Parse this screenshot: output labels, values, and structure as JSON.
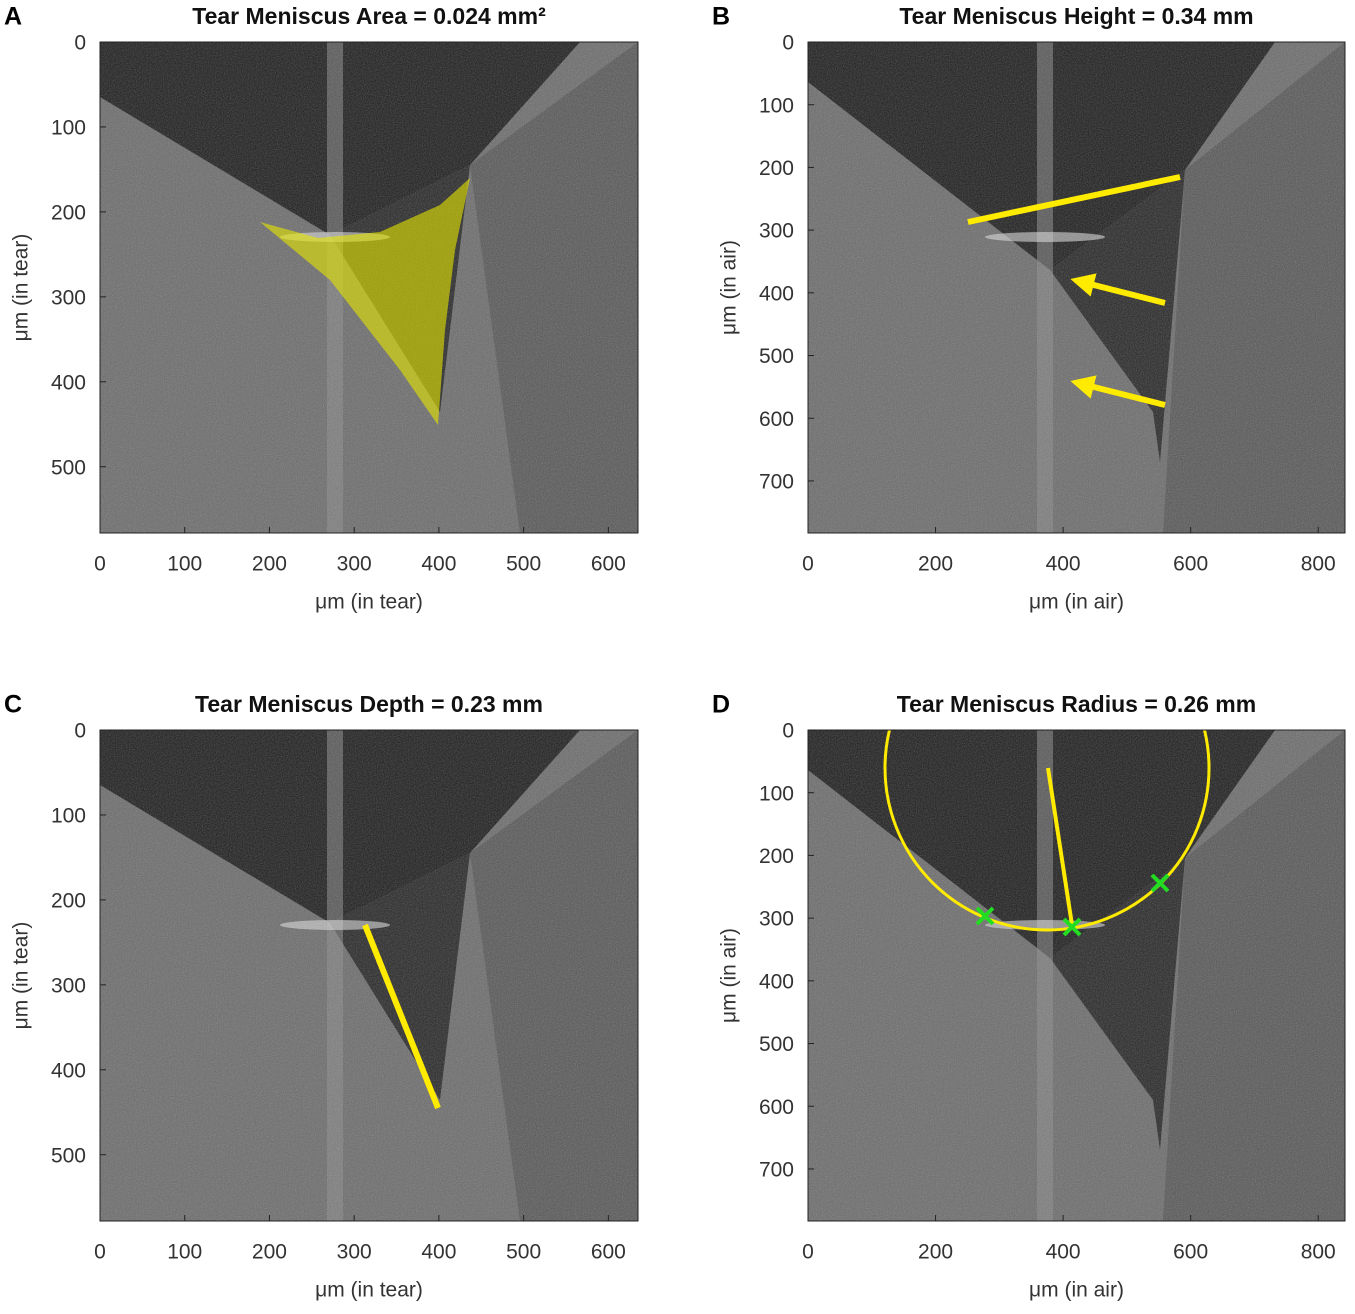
{
  "chart_data": [
    {
      "type": "image",
      "panel": "A",
      "title": "Tear Meniscus Area = 0.024 mm²",
      "xlabel": "μm (in tear)",
      "ylabel": "μm (in tear)",
      "xlim": [
        0,
        635
      ],
      "ylim": [
        0,
        578
      ],
      "xticks": [
        0,
        100,
        200,
        300,
        400,
        500,
        600
      ],
      "yticks": [
        0,
        100,
        200,
        300,
        400,
        500
      ],
      "y_reversed": true
    },
    {
      "type": "image",
      "panel": "B",
      "title": "Tear Meniscus Height = 0.34 mm",
      "xlabel": "μm (in air)",
      "ylabel": "μm (in air)",
      "xlim": [
        0,
        842
      ],
      "ylim": [
        0,
        783
      ],
      "xticks": [
        0,
        200,
        400,
        600,
        800
      ],
      "yticks": [
        0,
        100,
        200,
        300,
        400,
        500,
        600,
        700
      ],
      "y_reversed": true
    },
    {
      "type": "image",
      "panel": "C",
      "title": "Tear Meniscus Depth = 0.23 mm",
      "xlabel": "μm (in tear)",
      "ylabel": "μm (in tear)",
      "xlim": [
        0,
        635
      ],
      "ylim": [
        0,
        578
      ],
      "xticks": [
        0,
        100,
        200,
        300,
        400,
        500,
        600
      ],
      "yticks": [
        0,
        100,
        200,
        300,
        400,
        500
      ],
      "y_reversed": true
    },
    {
      "type": "image",
      "panel": "D",
      "title": "Tear Meniscus Radius = 0.26 mm",
      "xlabel": "μm (in air)",
      "ylabel": "μm (in air)",
      "xlim": [
        0,
        842
      ],
      "ylim": [
        0,
        783
      ],
      "xticks": [
        0,
        200,
        400,
        600,
        800
      ],
      "yticks": [
        0,
        100,
        200,
        300,
        400,
        500,
        600,
        700
      ],
      "y_reversed": true
    }
  ]
}
